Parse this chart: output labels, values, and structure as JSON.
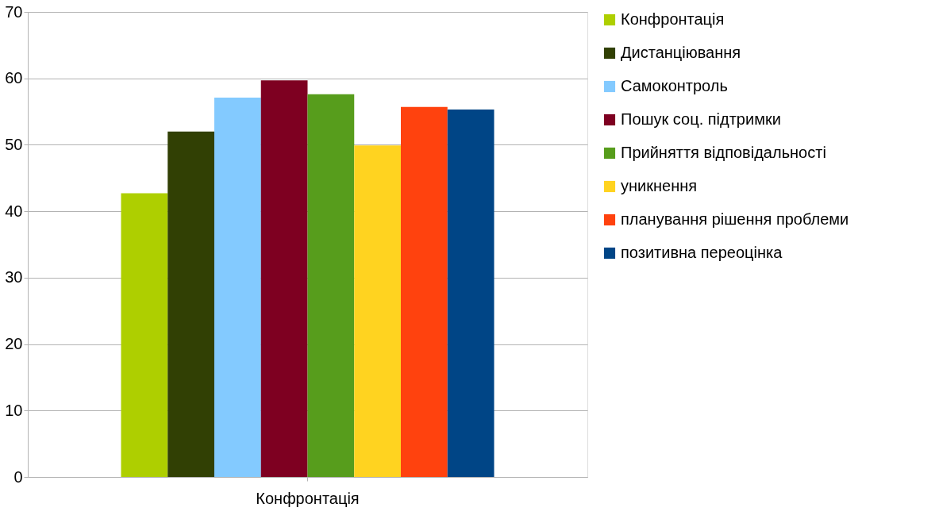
{
  "chart_data": {
    "type": "bar",
    "categories": [
      "Конфронтація"
    ],
    "series": [
      {
        "name": "Конфронтація",
        "color": "#aecf00",
        "values": [
          42.7
        ]
      },
      {
        "name": "Дистанціювання",
        "color": "#314004",
        "values": [
          52.0
        ]
      },
      {
        "name": "Самоконтроль",
        "color": "#83caff",
        "values": [
          57.1
        ]
      },
      {
        "name": "Пошук соц. підтримки",
        "color": "#7e0021",
        "values": [
          59.7
        ]
      },
      {
        "name": "Прийняття відповідальності",
        "color": "#579d1c",
        "values": [
          57.6
        ]
      },
      {
        "name": "уникнення",
        "color": "#ffd320",
        "values": [
          49.9
        ]
      },
      {
        "name": "планування рішення проблеми",
        "color": "#ff420e",
        "values": [
          55.7
        ]
      },
      {
        "name": "позитивна переоцінка",
        "color": "#004586",
        "values": [
          55.3
        ]
      }
    ],
    "ylim": [
      0,
      70
    ],
    "yticks": [
      0,
      10,
      20,
      30,
      40,
      50,
      60,
      70
    ],
    "grid": "y",
    "legend": "right"
  }
}
